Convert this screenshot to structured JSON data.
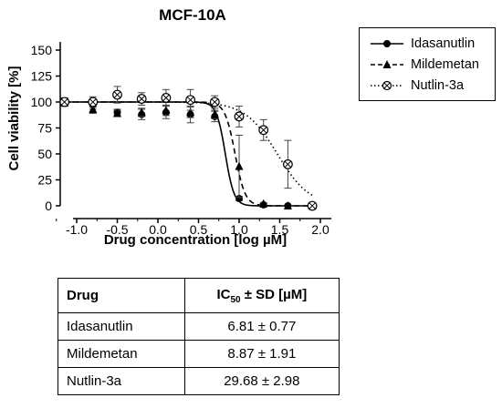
{
  "chart_data": {
    "type": "scatter",
    "title": "MCF-10A",
    "xlabel": "Drug concentration [log µM]",
    "ylabel": "Cell viability [%]",
    "xlim": [
      -1.3,
      2.0
    ],
    "ylim": [
      0,
      160
    ],
    "x_ticks": [
      -1.0,
      -0.5,
      0.0,
      0.5,
      1.0,
      1.5,
      2.0
    ],
    "y_ticks": [
      0,
      25,
      50,
      75,
      100,
      125,
      150
    ],
    "grid": false,
    "legend_position": "top-right, outside plot",
    "series": [
      {
        "name": "Idasanutlin",
        "marker": "circle-filled",
        "line_style": "solid",
        "points": [
          {
            "x": -1.15,
            "y": 100,
            "sd": 4
          },
          {
            "x": -0.8,
            "y": 97,
            "sd": 4
          },
          {
            "x": -0.5,
            "y": 90,
            "sd": 3
          },
          {
            "x": -0.2,
            "y": 88,
            "sd": 5
          },
          {
            "x": 0.1,
            "y": 90,
            "sd": 6
          },
          {
            "x": 0.4,
            "y": 88,
            "sd": 8
          },
          {
            "x": 0.7,
            "y": 86,
            "sd": 5
          },
          {
            "x": 1.0,
            "y": 7,
            "sd": 2
          },
          {
            "x": 1.3,
            "y": 1,
            "sd": 1
          },
          {
            "x": 1.6,
            "y": 0,
            "sd": 0
          },
          {
            "x": 1.9,
            "y": 0,
            "sd": 0
          }
        ],
        "fit_curve": {
          "top": 100,
          "bottom": 0,
          "log_ic50": 0.83,
          "hill": 8
        }
      },
      {
        "name": "Mildemetan",
        "marker": "triangle-filled",
        "line_style": "dashed",
        "points": [
          {
            "x": -1.15,
            "y": 99,
            "sd": 3
          },
          {
            "x": -0.8,
            "y": 93,
            "sd": 4
          },
          {
            "x": -0.5,
            "y": 89,
            "sd": 3
          },
          {
            "x": -0.2,
            "y": 90,
            "sd": 4
          },
          {
            "x": 0.1,
            "y": 92,
            "sd": 5
          },
          {
            "x": 0.4,
            "y": 90,
            "sd": 5
          },
          {
            "x": 0.7,
            "y": 88,
            "sd": 4
          },
          {
            "x": 1.0,
            "y": 38,
            "sd": 30
          },
          {
            "x": 1.3,
            "y": 2,
            "sd": 1
          },
          {
            "x": 1.6,
            "y": 0,
            "sd": 0
          },
          {
            "x": 1.9,
            "y": 0,
            "sd": 0
          }
        ],
        "fit_curve": {
          "top": 100,
          "bottom": 0,
          "log_ic50": 0.95,
          "hill": 7
        }
      },
      {
        "name": "Nutlin-3a",
        "marker": "circle-crossed",
        "line_style": "dotted",
        "points": [
          {
            "x": -1.15,
            "y": 100,
            "sd": 4
          },
          {
            "x": -0.8,
            "y": 100,
            "sd": 5
          },
          {
            "x": -0.5,
            "y": 107,
            "sd": 8
          },
          {
            "x": -0.2,
            "y": 103,
            "sd": 6
          },
          {
            "x": 0.1,
            "y": 104,
            "sd": 8
          },
          {
            "x": 0.4,
            "y": 102,
            "sd": 10
          },
          {
            "x": 0.7,
            "y": 100,
            "sd": 6
          },
          {
            "x": 1.0,
            "y": 86,
            "sd": 10
          },
          {
            "x": 1.3,
            "y": 73,
            "sd": 10
          },
          {
            "x": 1.6,
            "y": 40,
            "sd": 23
          },
          {
            "x": 1.9,
            "y": 0,
            "sd": 0
          }
        ],
        "fit_curve": {
          "top": 100,
          "bottom": 0,
          "log_ic50": 1.47,
          "hill": 2.2
        }
      }
    ]
  },
  "legend": {
    "items": [
      {
        "label": "Idasanutlin"
      },
      {
        "label": "Mildemetan"
      },
      {
        "label": "Nutlin-3a"
      }
    ]
  },
  "table": {
    "header_drug": "Drug",
    "header_ic50_prefix": "IC",
    "header_ic50_sub": "50",
    "header_ic50_suffix": " ± SD [µM]",
    "rows": [
      {
        "drug": "Idasanutlin",
        "ic50": "6.81 ± 0.77"
      },
      {
        "drug": "Mildemetan",
        "ic50": "8.87 ± 1.91"
      },
      {
        "drug": "Nutlin-3a",
        "ic50": "29.68 ± 2.98"
      }
    ]
  }
}
